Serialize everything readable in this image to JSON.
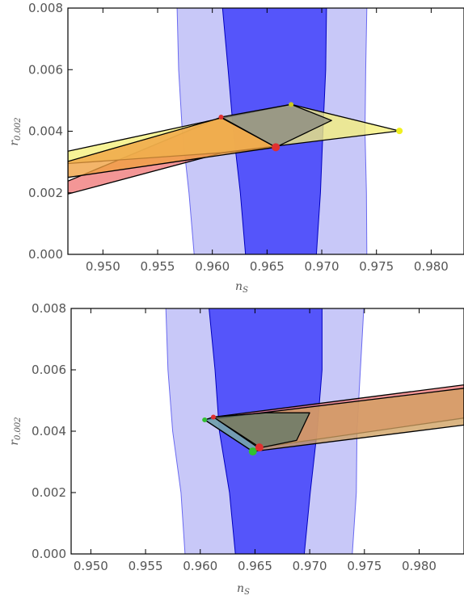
{
  "chart_data": [
    {
      "type": "area",
      "xlabel": "n",
      "xlabel_sub": "S",
      "ylabel": "r",
      "ylabel_sub": "0.002",
      "xlim": [
        0.9468,
        0.983
      ],
      "ylim": [
        0,
        0.008
      ],
      "xticks": [
        "0.950",
        "0.955",
        "0.960",
        "0.965",
        "0.970",
        "0.975",
        "0.980"
      ],
      "xtick_values": [
        0.95,
        0.955,
        0.96,
        0.965,
        0.97,
        0.975,
        0.98
      ],
      "yticks": [
        "0.000",
        "0.002",
        "0.004",
        "0.006",
        "0.008"
      ],
      "ytick_values": [
        0.0,
        0.002,
        0.004,
        0.006,
        0.008
      ],
      "contours": [
        {
          "level": "2sigma",
          "color": "#c8c8f8",
          "stroke": "#6a6af0",
          "left": [
            [
              0.95834,
              0
            ],
            [
              0.95787,
              0.002
            ],
            [
              0.95725,
              0.004
            ],
            [
              0.95692,
              0.006
            ],
            [
              0.95678,
              0.008
            ]
          ],
          "right": [
            [
              0.97412,
              0.008
            ],
            [
              0.97402,
              0.006
            ],
            [
              0.97395,
              0.004
            ],
            [
              0.97408,
              0.002
            ],
            [
              0.97412,
              0
            ]
          ]
        },
        {
          "level": "1sigma",
          "color": "#5555fa",
          "stroke": "#0000c0",
          "left": [
            [
              0.96303,
              0
            ],
            [
              0.96256,
              0.002
            ],
            [
              0.96192,
              0.004
            ],
            [
              0.96144,
              0.006
            ],
            [
              0.96093,
              0.008
            ]
          ],
          "right": [
            [
              0.97043,
              0.008
            ],
            [
              0.97036,
              0.006
            ],
            [
              0.97011,
              0.004
            ],
            [
              0.96988,
              0.002
            ],
            [
              0.96951,
              0
            ]
          ]
        }
      ],
      "regions": [
        {
          "color": "#f07878",
          "points": [
            [
              0.9468,
              0.00196
            ],
            [
              0.9608,
              0.00329
            ],
            [
              0.9658,
              0.00348
            ],
            [
              0.9608,
              0.00446
            ],
            [
              0.9468,
              0.00238
            ]
          ]
        },
        {
          "color": "#f5f07a",
          "points": [
            [
              0.9468,
              0.00335
            ],
            [
              0.9608,
              0.00442
            ],
            [
              0.9672,
              0.00487
            ],
            [
              0.9771,
              0.00401
            ],
            [
              0.9608,
              0.0033
            ],
            [
              0.9468,
              0.00295
            ]
          ]
        },
        {
          "color": "#f0a040",
          "points": [
            [
              0.9468,
              0.00302
            ],
            [
              0.9608,
              0.00444
            ],
            [
              0.9658,
              0.00348
            ],
            [
              0.9468,
              0.0025
            ]
          ]
        },
        {
          "color": "#8a8a80",
          "points": [
            [
              0.9608,
              0.00446
            ],
            [
              0.9672,
              0.00487
            ],
            [
              0.9709,
              0.00435
            ],
            [
              0.9658,
              0.00348
            ]
          ]
        }
      ],
      "points": [
        {
          "x": 0.9608,
          "y": 0.00446,
          "color": "#e03030",
          "r": 3
        },
        {
          "x": 0.9658,
          "y": 0.00348,
          "color": "#e03030",
          "r": 5
        },
        {
          "x": 0.9672,
          "y": 0.00487,
          "color": "#c8c820",
          "r": 3
        },
        {
          "x": 0.9771,
          "y": 0.00401,
          "color": "#f0f020",
          "r": 4
        }
      ]
    },
    {
      "type": "area",
      "xlabel": "n",
      "xlabel_sub": "S",
      "ylabel": "r",
      "ylabel_sub": "0.002",
      "xlim": [
        0.9482,
        0.9841
      ],
      "ylim": [
        0,
        0.008
      ],
      "xticks": [
        "0.950",
        "0.955",
        "0.960",
        "0.965",
        "0.970",
        "0.975",
        "0.980"
      ],
      "xtick_values": [
        0.95,
        0.955,
        0.96,
        0.965,
        0.97,
        0.975,
        0.98
      ],
      "yticks": [
        "0.000",
        "0.002",
        "0.004",
        "0.006",
        "0.008"
      ],
      "ytick_values": [
        0.0,
        0.002,
        0.004,
        0.006,
        0.008
      ],
      "contours": [
        {
          "level": "2sigma",
          "color": "#c8c8f8",
          "stroke": "#6a6af0",
          "left": [
            [
              0.95861,
              0
            ],
            [
              0.95824,
              0.002
            ],
            [
              0.95748,
              0.004
            ],
            [
              0.95705,
              0.006
            ],
            [
              0.95686,
              0.008
            ]
          ],
          "right": [
            [
              0.97494,
              0.008
            ],
            [
              0.97463,
              0.006
            ],
            [
              0.97432,
              0.004
            ],
            [
              0.97426,
              0.002
            ],
            [
              0.97389,
              0
            ]
          ]
        },
        {
          "level": "1sigma",
          "color": "#5555fa",
          "stroke": "#0000c0",
          "left": [
            [
              0.96321,
              0
            ],
            [
              0.96267,
              0.002
            ],
            [
              0.96175,
              0.004
            ],
            [
              0.96135,
              0.006
            ],
            [
              0.9608,
              0.008
            ]
          ],
          "right": [
            [
              0.97113,
              0.008
            ],
            [
              0.97113,
              0.006
            ],
            [
              0.97068,
              0.004
            ],
            [
              0.97005,
              0.002
            ],
            [
              0.9695,
              0
            ]
          ]
        }
      ],
      "regions": [
        {
          "color": "#f07878",
          "points": [
            [
              0.9612,
              0.00446
            ],
            [
              0.9653,
              0.00346
            ],
            [
              0.9841,
              0.00443
            ],
            [
              0.9841,
              0.00551
            ]
          ]
        },
        {
          "color": "#d0a060",
          "points": [
            [
              0.9604,
              0.00437
            ],
            [
              0.9648,
              0.00334
            ],
            [
              0.9841,
              0.0042
            ],
            [
              0.9841,
              0.0054
            ]
          ]
        },
        {
          "color": "#607868",
          "points": [
            [
              0.9612,
              0.00446
            ],
            [
              0.9655,
              0.00346
            ],
            [
              0.9688,
              0.0037
            ],
            [
              0.97,
              0.0046
            ],
            [
              0.966,
              0.0046
            ]
          ]
        },
        {
          "color": "#60a0c0",
          "points": [
            [
              0.9604,
              0.00437
            ],
            [
              0.9612,
              0.00446
            ],
            [
              0.9653,
              0.00346
            ],
            [
              0.9648,
              0.00334
            ]
          ]
        }
      ],
      "points": [
        {
          "x": 0.9604,
          "y": 0.00437,
          "color": "#30c030",
          "r": 3
        },
        {
          "x": 0.9612,
          "y": 0.00446,
          "color": "#e03030",
          "r": 3
        },
        {
          "x": 0.9648,
          "y": 0.00334,
          "color": "#30c030",
          "r": 5
        },
        {
          "x": 0.9654,
          "y": 0.00347,
          "color": "#e03030",
          "r": 5
        }
      ]
    }
  ]
}
